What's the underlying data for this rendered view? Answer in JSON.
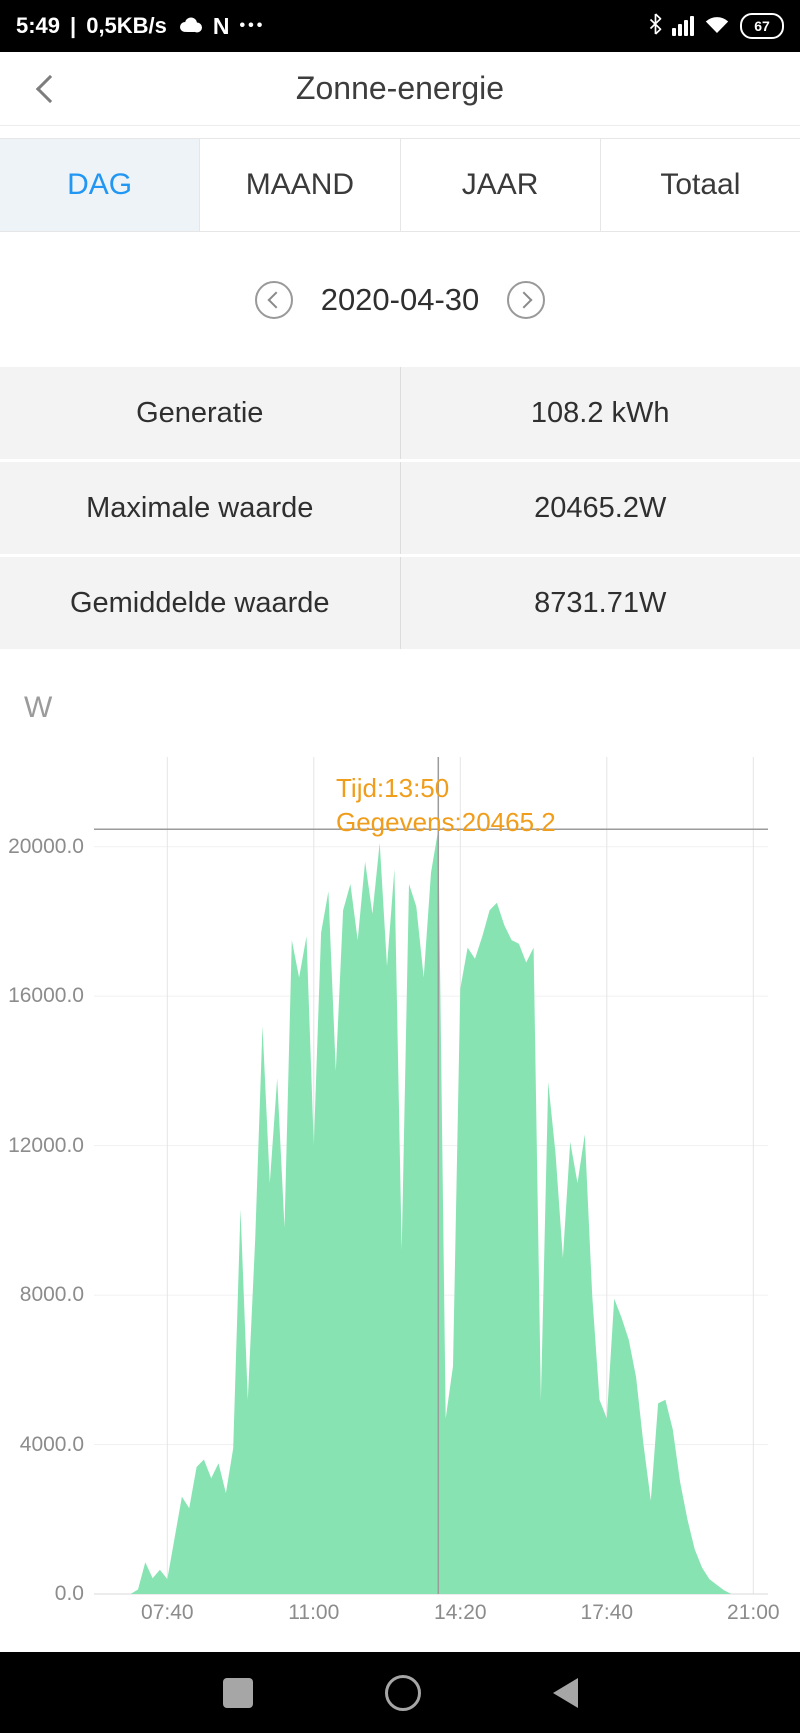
{
  "status_bar": {
    "time": "5:49",
    "separator": "|",
    "network_speed": "0,5KB/s",
    "carrier": "N",
    "overflow_dots": "•••",
    "battery_level": "67"
  },
  "header": {
    "title": "Zonne-energie"
  },
  "tabs": [
    {
      "label": "DAG",
      "active": true
    },
    {
      "label": "MAAND",
      "active": false
    },
    {
      "label": "JAAR",
      "active": false
    },
    {
      "label": "Totaal",
      "active": false
    }
  ],
  "date_nav": {
    "date": "2020-04-30"
  },
  "stats": {
    "rows": [
      {
        "label": "Generatie",
        "value": "108.2 kWh"
      },
      {
        "label": "Maximale waarde",
        "value": "20465.2W"
      },
      {
        "label": "Gemiddelde waarde",
        "value": "8731.71W"
      }
    ]
  },
  "chart": {
    "unit_label": "W",
    "tooltip": {
      "line1": "Tijd:13:50",
      "line2": "Gegevens:20465.2"
    }
  },
  "chart_data": {
    "type": "area",
    "title": "Zonne-energie dagproductie 2020-04-30",
    "ylabel": "W",
    "x_domain": [
      "06:00",
      "21:20"
    ],
    "x_ticks": [
      "07:40",
      "11:00",
      "14:20",
      "17:40",
      "21:00"
    ],
    "y_ticks": {
      "values": [
        0,
        4000,
        8000,
        12000,
        16000,
        20000
      ],
      "labels": [
        "0.0",
        "4000.0",
        "8000.0",
        "12000.0",
        "16000.0",
        "20000.0"
      ]
    },
    "y_max": 22400,
    "marker": {
      "time": "13:50",
      "value": 20465.2
    },
    "series": [
      {
        "name": "Gegevens",
        "times": [
          "06:50",
          "07:00",
          "07:10",
          "07:20",
          "07:30",
          "07:40",
          "07:50",
          "08:00",
          "08:10",
          "08:20",
          "08:30",
          "08:40",
          "08:50",
          "09:00",
          "09:10",
          "09:20",
          "09:30",
          "09:40",
          "09:50",
          "10:00",
          "10:10",
          "10:20",
          "10:30",
          "10:40",
          "10:50",
          "11:00",
          "11:10",
          "11:20",
          "11:30",
          "11:40",
          "11:50",
          "12:00",
          "12:10",
          "12:20",
          "12:30",
          "12:40",
          "12:50",
          "13:00",
          "13:10",
          "13:20",
          "13:30",
          "13:40",
          "13:50",
          "14:00",
          "14:10",
          "14:20",
          "14:30",
          "14:40",
          "14:50",
          "15:00",
          "15:10",
          "15:20",
          "15:30",
          "15:40",
          "15:50",
          "16:00",
          "16:10",
          "16:20",
          "16:30",
          "16:40",
          "16:50",
          "17:00",
          "17:10",
          "17:20",
          "17:30",
          "17:40",
          "17:50",
          "18:00",
          "18:10",
          "18:20",
          "18:30",
          "18:40",
          "18:50",
          "19:00",
          "19:10",
          "19:20",
          "19:30",
          "19:40",
          "19:50",
          "20:00",
          "20:10",
          "20:20",
          "20:30"
        ],
        "values": [
          0,
          120,
          850,
          420,
          650,
          400,
          1500,
          2600,
          2300,
          3400,
          3600,
          3100,
          3500,
          2700,
          3900,
          10300,
          5200,
          9500,
          15200,
          11000,
          13800,
          9800,
          17500,
          16500,
          17600,
          12000,
          17700,
          18800,
          14000,
          18300,
          19000,
          17500,
          19600,
          18200,
          20100,
          16800,
          19400,
          9200,
          19000,
          18400,
          16500,
          19300,
          20465.2,
          4700,
          6100,
          16200,
          17300,
          17000,
          17600,
          18300,
          18500,
          17900,
          17500,
          17400,
          16900,
          17300,
          5200,
          13700,
          11800,
          9000,
          12100,
          11000,
          12300,
          8000,
          5200,
          4700,
          7900,
          7400,
          6800,
          5800,
          4000,
          2500,
          5100,
          5200,
          4400,
          3000,
          2000,
          1200,
          700,
          400,
          250,
          100,
          0
        ]
      }
    ]
  },
  "colors": {
    "area_fill": "#88e3b3",
    "tooltip_text": "#f09d1b",
    "active_tab": "#2196f3",
    "grid": "#e4e4e4",
    "marker_line": "#9b9b9b",
    "status_bar_bg": "#000000",
    "stats_row_bg": "#f3f3f3"
  }
}
